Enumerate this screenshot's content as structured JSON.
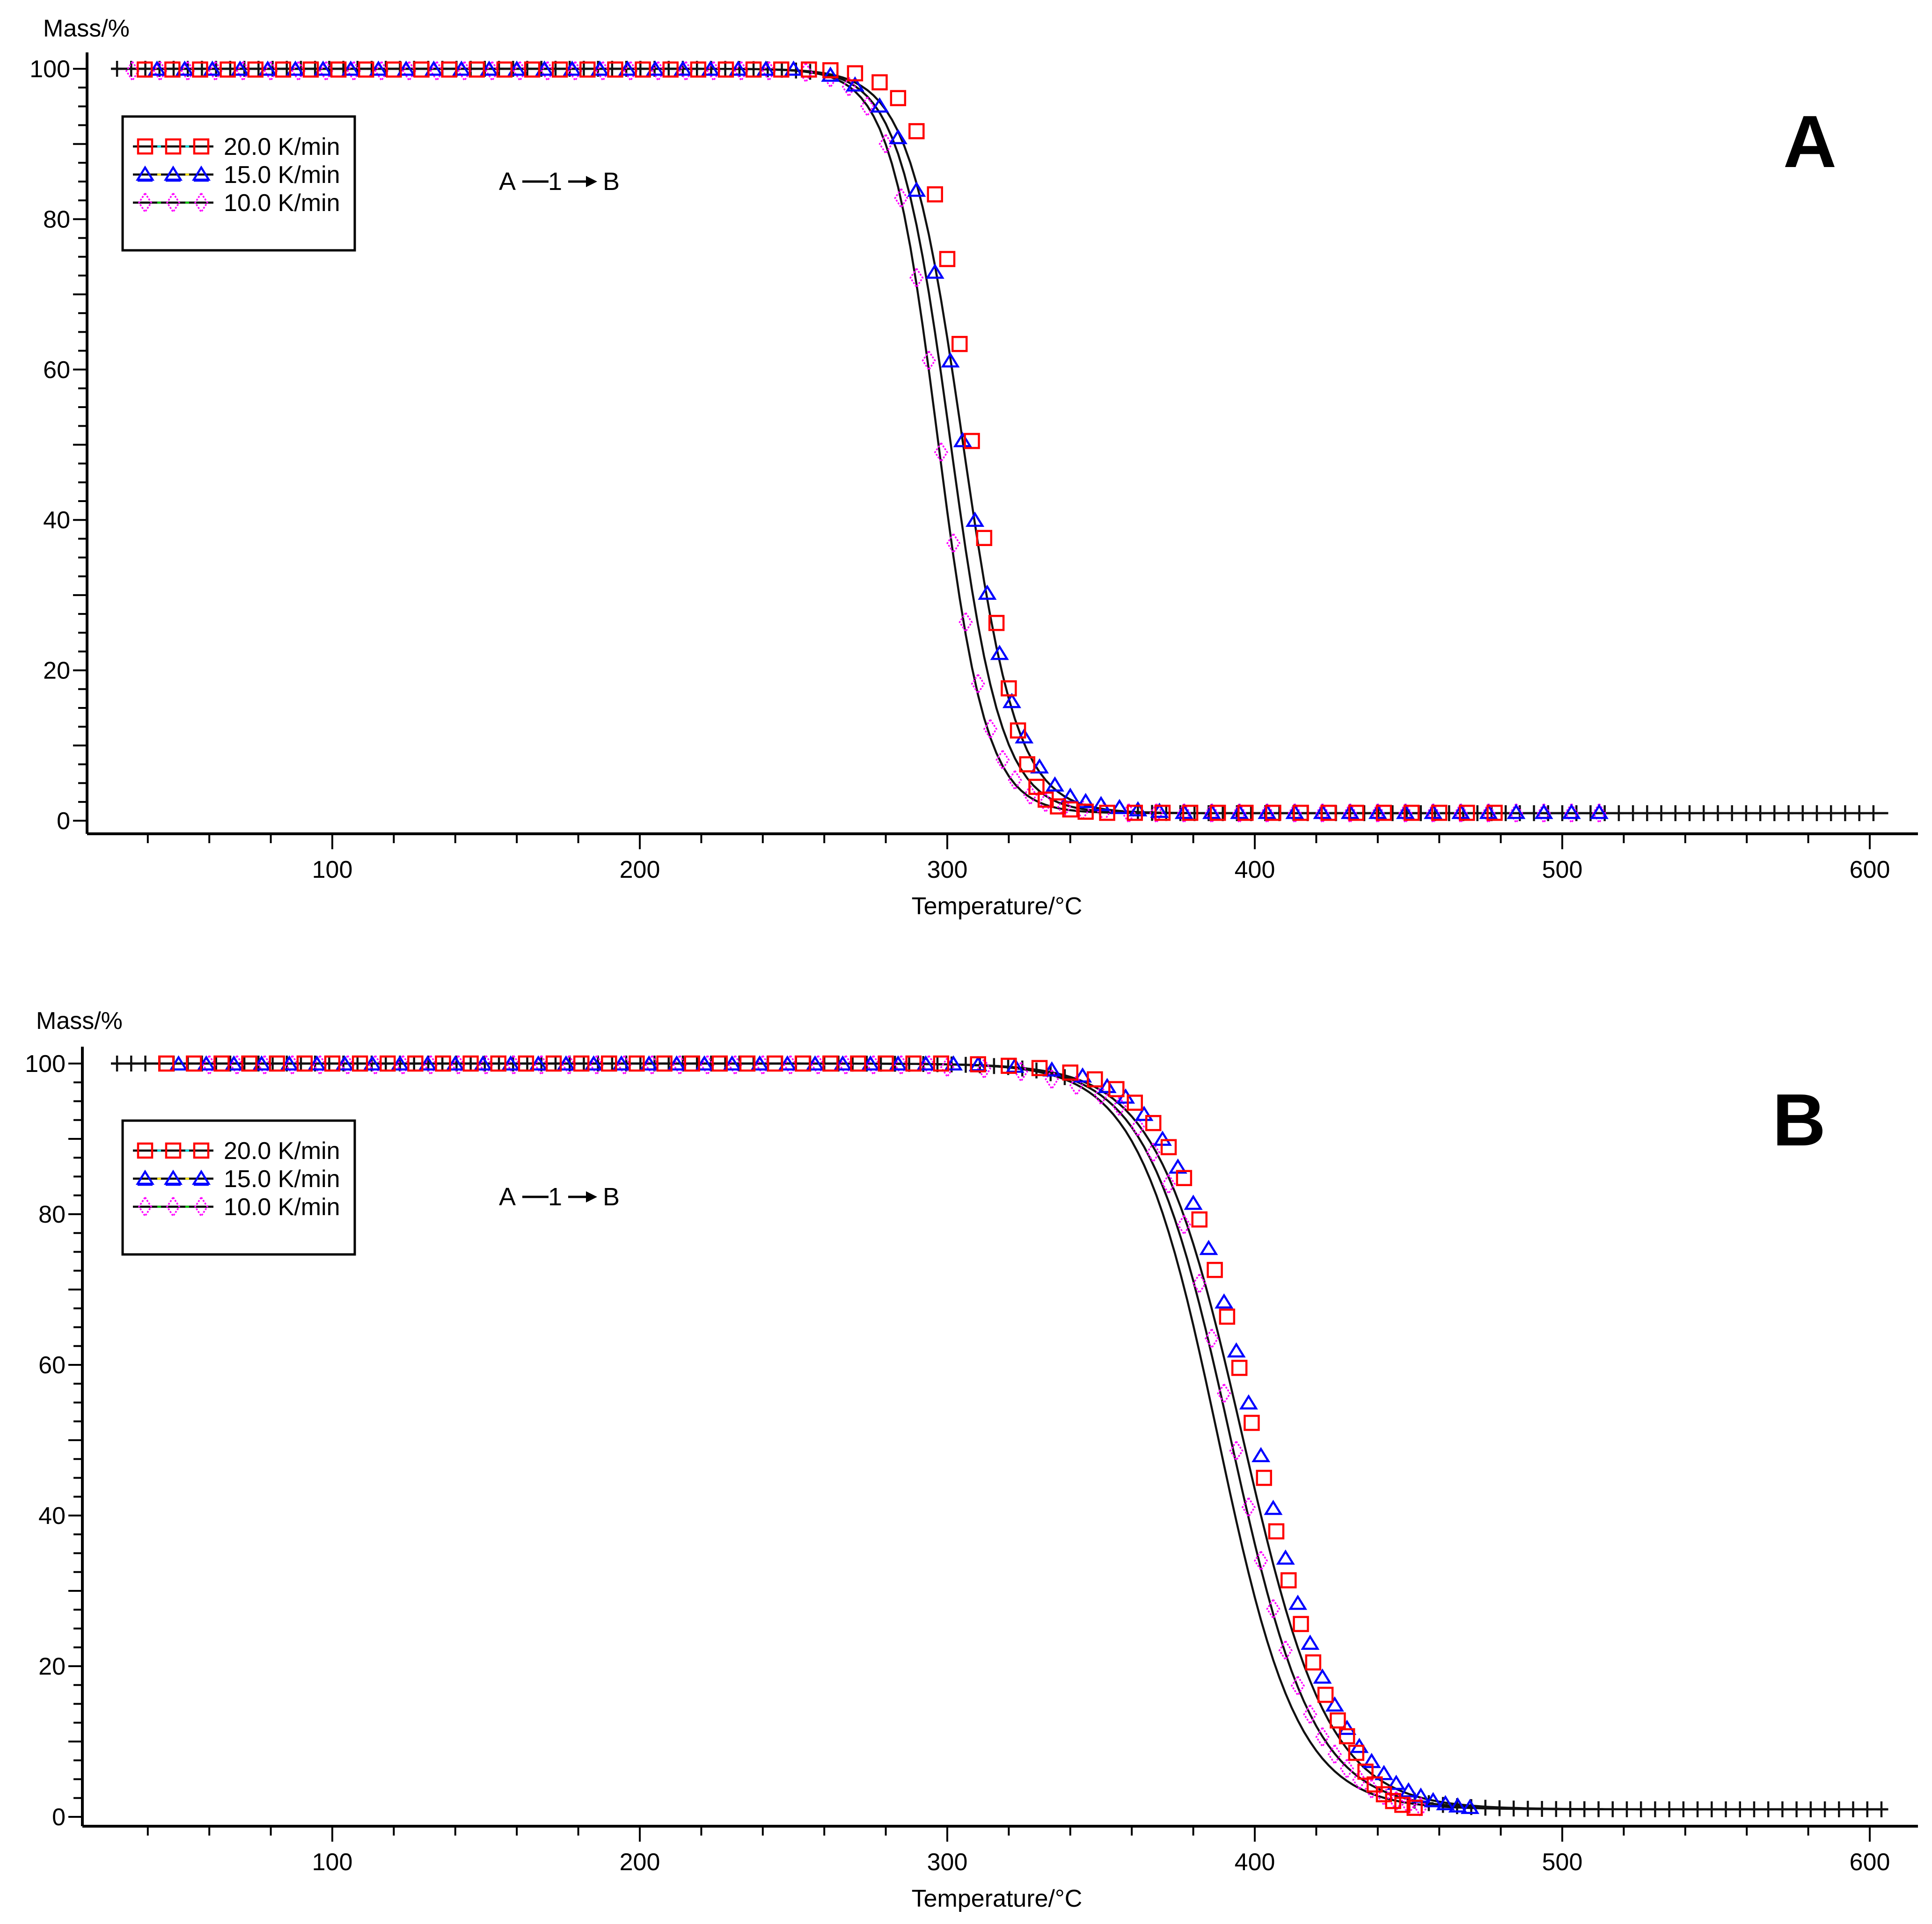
{
  "figure": {
    "background": "#ffffff",
    "axis_color": "#000000",
    "fit_line_color": "#111111",
    "plus_marker_color": "#111111"
  },
  "legend": {
    "items": [
      {
        "label": "20.0 K/min",
        "symbol": "square",
        "color": "#ff0000",
        "accent": "#00e0e0"
      },
      {
        "label": "15.0 K/min",
        "symbol": "triangle",
        "color": "#0000ff",
        "accent": "#ffe800"
      },
      {
        "label": "10.0 K/min",
        "symbol": "diamond",
        "color": "#ff00ff",
        "accent": "#00cc00"
      }
    ]
  },
  "annotation": {
    "left": "A",
    "mid": "1",
    "right": "B"
  },
  "chart_data": [
    {
      "type": "line",
      "panel": "A",
      "corner_label": "A",
      "ylabel": "Mass/%",
      "xlabel": "Temperature/°C",
      "x_ticks": [
        100,
        200,
        300,
        400,
        500,
        600
      ],
      "y_ticks": [
        0,
        20,
        40,
        60,
        80,
        100
      ],
      "xlim": [
        20,
        614
      ],
      "ylim": [
        0,
        100
      ],
      "x_minor_step": 20,
      "y_minor_step": 2.5,
      "series": [
        {
          "name": "20.0 K/min",
          "symbol": "square",
          "color": "#ff0000",
          "flat_head": {
            "from": 39,
            "to": 258,
            "step": 9,
            "mass": 99.9
          },
          "points": [
            [
              262,
              99.8
            ],
            [
              270,
              99.4
            ],
            [
              278,
              98.2
            ],
            [
              284,
              96.1
            ],
            [
              290,
              91.7
            ],
            [
              296,
              83.3
            ],
            [
              300,
              74.7
            ],
            [
              304,
              63.4
            ],
            [
              308,
              50.5
            ],
            [
              312,
              37.6
            ],
            [
              316,
              26.3
            ],
            [
              320,
              17.6
            ],
            [
              323,
              12
            ],
            [
              326,
              7.5
            ],
            [
              329,
              4.5
            ],
            [
              332,
              2.8
            ],
            [
              336,
              1.9
            ],
            [
              340,
              1.5
            ],
            [
              345,
              1.2
            ]
          ],
          "flat_tail": {
            "from": 352,
            "to": 481,
            "step": 9,
            "mass": 1.05
          }
        },
        {
          "name": "15.0 K/min",
          "symbol": "triangle",
          "color": "#0000ff",
          "flat_head": {
            "from": 43,
            "to": 257,
            "step": 9,
            "mass": 99.9
          },
          "points": [
            [
              262,
              99.1
            ],
            [
              270,
              97.8
            ],
            [
              278,
              95.0
            ],
            [
              284,
              90.8
            ],
            [
              290,
              83.8
            ],
            [
              296,
              72.9
            ],
            [
              301,
              61.1
            ],
            [
              305,
              50.5
            ],
            [
              309,
              39.9
            ],
            [
              313,
              30.2
            ],
            [
              317,
              22.2
            ],
            [
              321,
              15.8
            ],
            [
              325,
              11.1
            ],
            [
              330,
              7.1
            ],
            [
              335,
              4.7
            ],
            [
              340,
              3.2
            ],
            [
              345,
              2.5
            ],
            [
              350,
              2.1
            ],
            [
              356,
              1.7
            ],
            [
              362,
              1.4
            ],
            [
              369,
              1.2
            ]
          ],
          "flat_tail": {
            "from": 377,
            "to": 516,
            "step": 9,
            "mass": 1.05
          }
        },
        {
          "name": "10.0 K/min",
          "symbol": "diamond",
          "color": "#ff00ff",
          "flat_head": {
            "from": 35,
            "to": 249,
            "step": 9,
            "mass": 99.7
          },
          "points": [
            [
              254,
              99.5
            ],
            [
              262,
              98.8
            ],
            [
              268,
              97.6
            ],
            [
              274,
              95.0
            ],
            [
              280,
              90.0
            ],
            [
              285,
              82.8
            ],
            [
              290,
              72.2
            ],
            [
              294,
              61.2
            ],
            [
              298,
              49.0
            ],
            [
              302,
              36.9
            ],
            [
              306,
              26.4
            ],
            [
              310,
              18.2
            ],
            [
              314,
              12.2
            ],
            [
              318,
              8.1
            ],
            [
              322,
              5.4
            ],
            [
              327,
              3.4
            ],
            [
              332,
              2.4
            ],
            [
              338,
              1.8
            ],
            [
              344,
              1.4
            ],
            [
              351,
              1.2
            ]
          ],
          "flat_tail": {
            "from": 359,
            "to": 520,
            "step": 9,
            "mass": 1.0
          }
        }
      ],
      "fit_lines": [
        {
          "center": 297,
          "width": 7.8
        },
        {
          "center": 301,
          "width": 8.3
        },
        {
          "center": 305,
          "width": 8.8
        }
      ],
      "fit_base": 1,
      "fit_amplitude": 99,
      "plus_ranges": [
        {
          "from": 30,
          "to": 256,
          "step": 4.6
        },
        {
          "from": 362,
          "to": 604,
          "step": 4.6
        }
      ]
    },
    {
      "type": "line",
      "panel": "B",
      "corner_label": "B",
      "ylabel": "Mass/%",
      "xlabel": "Temperature/°C",
      "x_ticks": [
        100,
        200,
        300,
        400,
        500,
        600
      ],
      "y_ticks": [
        0,
        20,
        40,
        60,
        80,
        100
      ],
      "xlim": [
        20,
        614
      ],
      "ylim": [
        0,
        100
      ],
      "x_minor_step": 20,
      "y_minor_step": 2.5,
      "series": [
        {
          "name": "20.0 K/min",
          "symbol": "square",
          "color": "#ff0000",
          "flat_head": {
            "from": 46,
            "to": 305,
            "step": 9,
            "mass": 100.0
          },
          "points": [
            [
              310,
              99.9
            ],
            [
              320,
              99.7
            ],
            [
              330,
              99.4
            ],
            [
              340,
              98.8
            ],
            [
              348,
              97.9
            ],
            [
              355,
              96.6
            ],
            [
              361,
              94.8
            ],
            [
              367,
              92.1
            ],
            [
              372,
              88.9
            ],
            [
              377,
              84.8
            ],
            [
              382,
              79.3
            ],
            [
              387,
              72.6
            ],
            [
              391,
              66.4
            ],
            [
              395,
              59.6
            ],
            [
              399,
              52.3
            ],
            [
              403,
              45.0
            ],
            [
              407,
              37.9
            ],
            [
              411,
              31.4
            ],
            [
              415,
              25.6
            ],
            [
              419,
              20.5
            ],
            [
              423,
              16.2
            ],
            [
              427,
              12.8
            ],
            [
              430,
              10.7
            ],
            [
              433,
              8.5
            ],
            [
              436,
              6.0
            ],
            [
              439,
              4.3
            ],
            [
              442,
              3.0
            ],
            [
              445,
              2.1
            ],
            [
              448,
              1.6
            ],
            [
              452,
              1.2
            ]
          ],
          "flat_tail": null
        },
        {
          "name": "15.0 K/min",
          "symbol": "triangle",
          "color": "#0000ff",
          "flat_head": {
            "from": 50,
            "to": 303,
            "step": 9,
            "mass": 99.9
          },
          "points": [
            [
              310,
              99.8
            ],
            [
              322,
              99.6
            ],
            [
              334,
              99.1
            ],
            [
              344,
              98.3
            ],
            [
              352,
              96.9
            ],
            [
              358,
              95.5
            ],
            [
              364,
              93.2
            ],
            [
              370,
              89.9
            ],
            [
              375,
              86.2
            ],
            [
              380,
              81.4
            ],
            [
              385,
              75.4
            ],
            [
              390,
              68.3
            ],
            [
              394,
              61.8
            ],
            [
              398,
              54.9
            ],
            [
              402,
              47.9
            ],
            [
              406,
              40.9
            ],
            [
              410,
              34.3
            ],
            [
              414,
              28.3
            ],
            [
              418,
              23.0
            ],
            [
              422,
              18.5
            ],
            [
              426,
              14.8
            ],
            [
              430,
              11.7
            ],
            [
              434,
              9.3
            ],
            [
              438,
              7.3
            ],
            [
              442,
              5.7
            ],
            [
              446,
              4.4
            ],
            [
              450,
              3.4
            ],
            [
              454,
              2.7
            ],
            [
              458,
              2.1
            ],
            [
              462,
              1.7
            ],
            [
              466,
              1.4
            ],
            [
              470,
              1.2
            ]
          ],
          "flat_tail": null
        },
        {
          "name": "10.0 K/min",
          "symbol": "diamond",
          "color": "#ff00ff",
          "flat_head": {
            "from": 60,
            "to": 296,
            "step": 9,
            "mass": 99.8
          },
          "points": [
            [
              300,
              99.5
            ],
            [
              312,
              99.3
            ],
            [
              324,
              98.9
            ],
            [
              334,
              97.9
            ],
            [
              342,
              97.1
            ],
            [
              350,
              95.8
            ],
            [
              356,
              94.3
            ],
            [
              362,
              91.6
            ],
            [
              367,
              88.2
            ],
            [
              372,
              84.0
            ],
            [
              377,
              78.6
            ],
            [
              382,
              70.8
            ],
            [
              386,
              63.5
            ],
            [
              390,
              56.2
            ],
            [
              394,
              48.6
            ],
            [
              398,
              41.1
            ],
            [
              402,
              34.0
            ],
            [
              406,
              27.6
            ],
            [
              410,
              22.1
            ],
            [
              414,
              17.4
            ],
            [
              418,
              13.6
            ],
            [
              422,
              10.6
            ],
            [
              426,
              8.3
            ],
            [
              430,
              6.4
            ],
            [
              434,
              4.9
            ],
            [
              438,
              3.7
            ],
            [
              442,
              2.8
            ],
            [
              446,
              2.1
            ],
            [
              450,
              1.6
            ],
            [
              454,
              1.3
            ]
          ],
          "flat_tail": null
        }
      ],
      "fit_lines": [
        {
          "center": 388,
          "width": 13
        },
        {
          "center": 392,
          "width": 13.5
        },
        {
          "center": 396,
          "width": 14
        }
      ],
      "fit_base": 1,
      "fit_amplitude": 99,
      "plus_ranges": [
        {
          "from": 30,
          "to": 342,
          "step": 4.6
        },
        {
          "from": 452,
          "to": 604,
          "step": 4.6
        }
      ]
    }
  ]
}
